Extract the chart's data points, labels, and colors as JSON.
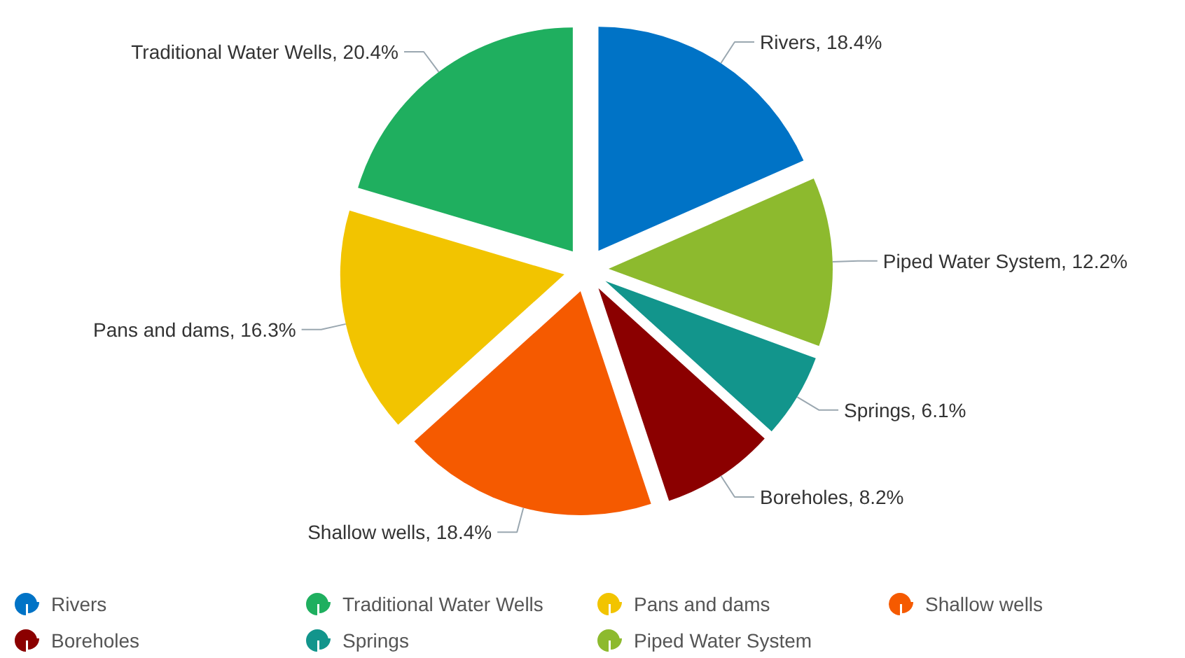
{
  "chart_data": {
    "type": "pie",
    "categories": [
      "Rivers",
      "Traditional Water Wells",
      "Pans and dams",
      "Shallow wells",
      "Boreholes",
      "Springs",
      "Piped Water System"
    ],
    "values": [
      18.4,
      20.4,
      16.3,
      18.4,
      8.2,
      6.1,
      12.2
    ],
    "annotations": [
      "Rivers, 18.4%",
      "Traditional Water Wells, 20.4%",
      "Pans and dams, 16.3%",
      "Shallow wells, 18.4%",
      "Boreholes, 8.2%",
      "Springs, 6.1%",
      "Piped Water System, 12.2%"
    ],
    "colors": [
      "#0073c6",
      "#1faf5f",
      "#f2c400",
      "#f55a00",
      "#8b0000",
      "#12958c",
      "#8dba2e"
    ],
    "legend": "bottom"
  }
}
